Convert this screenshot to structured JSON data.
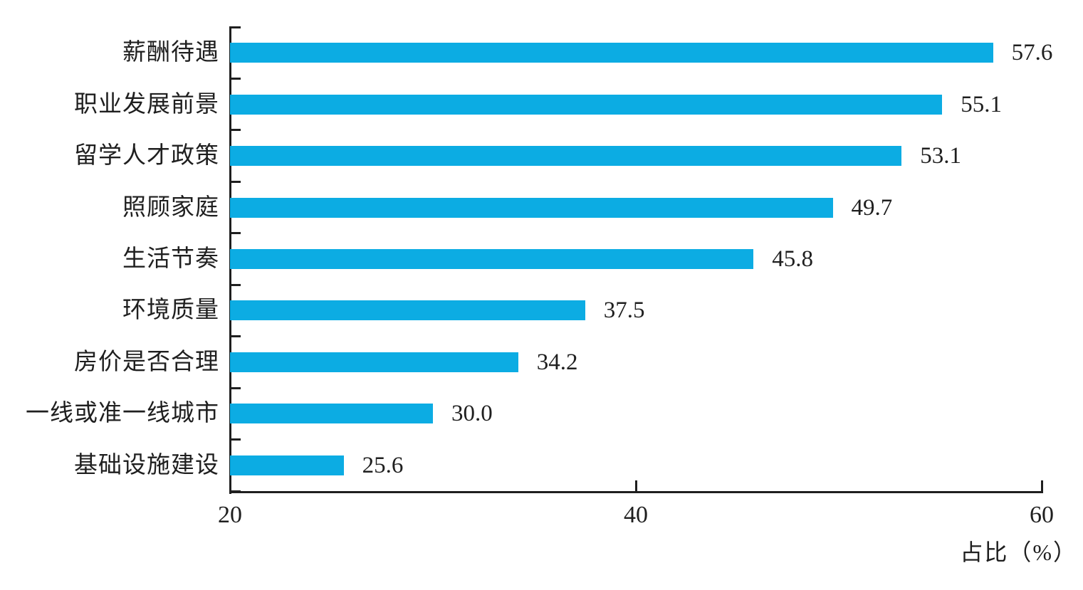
{
  "chart_data": {
    "type": "bar",
    "orientation": "horizontal",
    "title": "",
    "xlabel": "占比（%）",
    "ylabel": "",
    "categories": [
      "薪酬待遇",
      "职业发展前景",
      "留学人才政策",
      "照顾家庭",
      "生活节奏",
      "环境质量",
      "房价是否合理",
      "一线或准一线城市",
      "基础设施建设"
    ],
    "values": [
      57.6,
      55.1,
      53.1,
      49.7,
      45.8,
      37.5,
      34.2,
      30.0,
      25.6
    ],
    "value_labels": [
      "57.6",
      "55.1",
      "53.1",
      "49.7",
      "45.8",
      "37.5",
      "34.2",
      "30.0",
      "25.6"
    ],
    "x_ticks": [
      "20",
      "40",
      "60"
    ],
    "x_tick_values": [
      20,
      40,
      60
    ],
    "xlim": [
      20,
      60
    ],
    "grid": "off",
    "legend": "none",
    "bar_color": "#0cace3",
    "axis_color": "#1f1f1f"
  }
}
